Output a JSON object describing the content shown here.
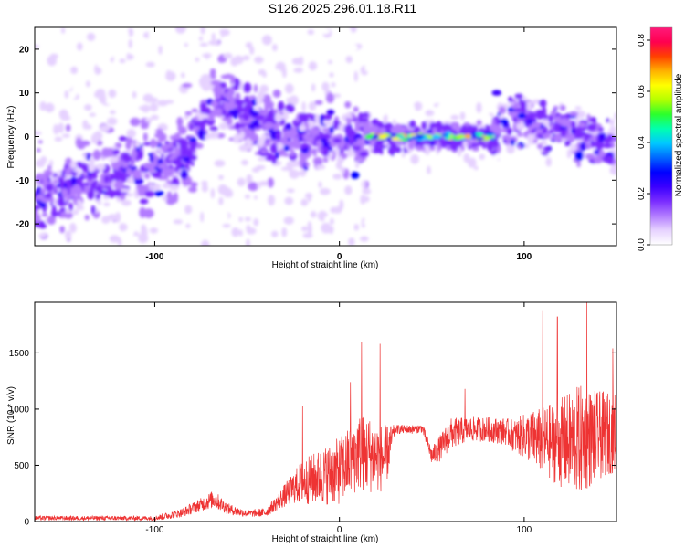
{
  "title": "S126.2025.296.01.18.R11",
  "colors": {
    "snr_line": "#ee3333",
    "frame": "#000000",
    "colormap": [
      "#ffffff",
      "#e6d2ff",
      "#b27cff",
      "#7a2cff",
      "#3a00ff",
      "#0000ff",
      "#0066ff",
      "#00c8ff",
      "#00ffb0",
      "#2cff2c",
      "#b4ff00",
      "#ffff00",
      "#ffb000",
      "#ff4000",
      "#ff0050",
      "#ff1a7a"
    ]
  },
  "chart_data": [
    {
      "type": "heatmap",
      "name": "spectrogram",
      "xlabel": "Height of straight line (km)",
      "ylabel": "Frequency (Hz)",
      "xlim": [
        -165,
        150
      ],
      "ylim": [
        -25,
        25
      ],
      "xticks": [
        -100,
        0,
        100
      ],
      "xtick_labels": [
        "-100",
        "0",
        "100"
      ],
      "yticks": [
        -20,
        -10,
        0,
        10,
        20
      ],
      "ytick_labels": [
        "-20",
        "-10",
        "0",
        "10",
        "20"
      ],
      "ridge": {
        "x": [
          -165,
          -140,
          -110,
          -95,
          -85,
          -75,
          -65,
          -55,
          -40,
          -20,
          0,
          10,
          15,
          20,
          40,
          60,
          80,
          85,
          95,
          100,
          110,
          130,
          150
        ],
        "y": [
          -14,
          -10,
          -7,
          -6,
          -4,
          2,
          9,
          5,
          2,
          0,
          -1,
          -1,
          0,
          0,
          0,
          0,
          0,
          1,
          4,
          5,
          2,
          1,
          -2
        ]
      },
      "peak_band": {
        "x_start": 15,
        "x_end": 85,
        "y": 0
      },
      "colorbar": {
        "label": "Normalized spectral amplitude",
        "range": [
          0.0,
          0.85
        ],
        "ticks": [
          0.0,
          0.2,
          0.4,
          0.6,
          0.8
        ],
        "tick_labels": [
          "0.0",
          "0.2",
          "0.4",
          "0.6",
          "0.8"
        ]
      }
    },
    {
      "type": "line",
      "name": "snr",
      "xlabel": "Height of straight line (km)",
      "ylabel": "SNR (10 * v/v)",
      "xlim": [
        -165,
        150
      ],
      "ylim": [
        0,
        1950
      ],
      "xticks": [
        -100,
        0,
        100
      ],
      "xtick_labels": [
        "-100",
        "0",
        "100"
      ],
      "yticks": [
        0,
        500,
        1000,
        1500
      ],
      "ytick_labels": [
        "0",
        "500",
        "1000",
        "1500"
      ],
      "envelope": {
        "x": [
          -165,
          -100,
          -95,
          -85,
          -75,
          -68,
          -60,
          -50,
          -40,
          -35,
          -25,
          -20,
          -10,
          0,
          5,
          10,
          15,
          20,
          25,
          30,
          40,
          45,
          50,
          55,
          60,
          70,
          80,
          90,
          95,
          100,
          110,
          120,
          130,
          140,
          150
        ],
        "mean": [
          30,
          30,
          45,
          80,
          150,
          200,
          110,
          70,
          80,
          150,
          300,
          350,
          400,
          450,
          520,
          620,
          600,
          580,
          560,
          820,
          820,
          830,
          580,
          660,
          780,
          820,
          820,
          800,
          760,
          760,
          720,
          700,
          720,
          760,
          800
        ],
        "amp": [
          20,
          20,
          30,
          40,
          60,
          80,
          50,
          30,
          40,
          60,
          140,
          200,
          250,
          300,
          320,
          350,
          350,
          320,
          300,
          40,
          40,
          40,
          80,
          120,
          140,
          110,
          110,
          120,
          150,
          200,
          300,
          400,
          500,
          400,
          350
        ]
      },
      "peaks": [
        {
          "x": -20,
          "y": 1030
        },
        {
          "x": 6,
          "y": 1240
        },
        {
          "x": 12,
          "y": 1600
        },
        {
          "x": 22,
          "y": 1580
        },
        {
          "x": 68,
          "y": 1180
        },
        {
          "x": 110,
          "y": 1880
        },
        {
          "x": 118,
          "y": 1820
        },
        {
          "x": 134,
          "y": 1950
        },
        {
          "x": 148,
          "y": 1540
        }
      ]
    }
  ]
}
